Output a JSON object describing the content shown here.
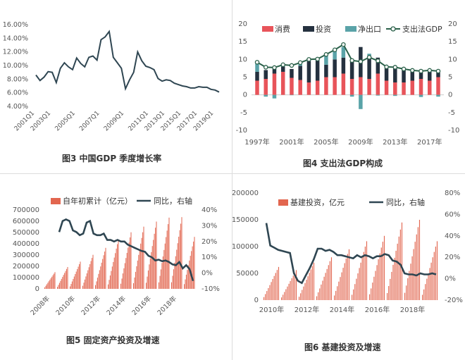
{
  "figures": {
    "fig3": "图3 中国GDP 季度增长率",
    "fig4": "图4 支出法GDP构成",
    "fig5": "图5 固定资产投资及增速",
    "fig6": "图6 基建投资及增速"
  },
  "colors": {
    "line": "#2f4652",
    "consumption": "#e8545a",
    "investment": "#25313f",
    "net_export": "#5aa3a8",
    "total": "#2a6049",
    "bars": "#e2664f",
    "axis_text": "#555555",
    "grid": "#e6e6e6"
  },
  "chart_data": [
    {
      "id": "gdp-quarterly",
      "type": "line",
      "ylim": [
        0.04,
        0.16
      ],
      "y_ticks": [
        "16.00%",
        "14.00%",
        "12.00%",
        "10.00%",
        "8.00%",
        "6.00%",
        "4.00%"
      ],
      "x_ticks": [
        "2001Q1",
        "2003Q1",
        "2005Q1",
        "2007Q1",
        "2009Q1",
        "2011Q1",
        "2013Q1",
        "2015Q1",
        "2017Q1",
        "2019Q1"
      ],
      "x": [
        "2001Q1",
        "2001Q3",
        "2002Q1",
        "2002Q3",
        "2003Q1",
        "2003Q2",
        "2003Q3",
        "2004Q1",
        "2004Q2",
        "2004Q3",
        "2005Q1",
        "2005Q2",
        "2005Q3",
        "2006Q1",
        "2006Q2",
        "2006Q3",
        "2007Q1",
        "2007Q2",
        "2007Q3",
        "2008Q1",
        "2008Q2",
        "2008Q3",
        "2009Q1",
        "2009Q2",
        "2009Q3",
        "2010Q1",
        "2010Q2",
        "2010Q3",
        "2011Q1",
        "2011Q3",
        "2012Q1",
        "2012Q3",
        "2013Q1",
        "2013Q3",
        "2014Q1",
        "2014Q3",
        "2015Q1",
        "2015Q3",
        "2016Q1",
        "2016Q3",
        "2017Q1",
        "2017Q3",
        "2018Q1",
        "2018Q3",
        "2019Q1",
        "2019Q3"
      ],
      "values": [
        0.086,
        0.078,
        0.083,
        0.091,
        0.09,
        0.075,
        0.096,
        0.104,
        0.098,
        0.094,
        0.111,
        0.103,
        0.098,
        0.112,
        0.114,
        0.108,
        0.138,
        0.142,
        0.15,
        0.112,
        0.104,
        0.096,
        0.066,
        0.079,
        0.09,
        0.12,
        0.107,
        0.099,
        0.097,
        0.094,
        0.081,
        0.077,
        0.079,
        0.078,
        0.074,
        0.072,
        0.07,
        0.069,
        0.067,
        0.067,
        0.069,
        0.068,
        0.068,
        0.065,
        0.064,
        0.061
      ]
    },
    {
      "id": "gdp-expenditure",
      "type": "bar",
      "ylim": [
        -10,
        20
      ],
      "y_ticks": [
        "20",
        "15",
        "10",
        "5",
        "0",
        "-5",
        "-10"
      ],
      "x_ticks": [
        "1997年",
        "2001年",
        "2005年",
        "2009年",
        "2013年",
        "2017年"
      ],
      "legend": [
        "消费",
        "投资",
        "净出口",
        "支出法GDP"
      ],
      "categories": [
        "1997",
        "1998",
        "1999",
        "2000",
        "2001",
        "2002",
        "2003",
        "2004",
        "2005",
        "2006",
        "2007",
        "2008",
        "2009",
        "2010",
        "2011",
        "2012",
        "2013",
        "2014",
        "2015",
        "2016",
        "2017",
        "2018"
      ],
      "series": [
        {
          "name": "消费",
          "values": [
            4.0,
            4.5,
            6.0,
            6.5,
            4.8,
            4.2,
            3.5,
            4.0,
            5.0,
            5.0,
            6.0,
            4.5,
            5.0,
            4.5,
            6.0,
            4.0,
            3.5,
            3.5,
            4.0,
            4.5,
            4.0,
            5.0
          ]
        },
        {
          "name": "投资",
          "values": [
            2.5,
            2.5,
            1.5,
            1.5,
            2.5,
            4.0,
            6.0,
            6.0,
            3.5,
            5.0,
            4.5,
            5.0,
            8.5,
            6.6,
            4.5,
            3.5,
            4.0,
            3.5,
            3.0,
            2.5,
            2.5,
            2.0
          ]
        },
        {
          "name": "净出口",
          "values": [
            2.5,
            -0.5,
            -1.0,
            0.3,
            -0.1,
            0.7,
            0.5,
            0.5,
            2.5,
            2.5,
            3.0,
            -0.5,
            -4.0,
            0.5,
            -0.2,
            0.3,
            -0.3,
            0.3,
            0.3,
            -0.6,
            0.5,
            -0.5
          ]
        },
        {
          "name": "支出法GDP",
          "values": [
            9.2,
            7.8,
            7.7,
            8.5,
            8.3,
            9.1,
            10.0,
            10.1,
            11.4,
            12.7,
            14.2,
            9.7,
            9.4,
            10.6,
            9.6,
            7.9,
            7.8,
            7.3,
            6.9,
            6.7,
            6.9,
            6.7
          ]
        }
      ]
    },
    {
      "id": "fixed-asset-investment",
      "type": "bar",
      "ylim": [
        0,
        700000
      ],
      "y2lim": [
        -0.1,
        0.4
      ],
      "y_ticks": [
        "700000",
        "600000",
        "500000",
        "400000",
        "300000",
        "200000",
        "100000",
        "0"
      ],
      "y2_ticks": [
        "40%",
        "30%",
        "20%",
        "10%",
        "0%",
        "-10%"
      ],
      "x_ticks": [
        "2008年",
        "2010年",
        "2012年",
        "2014年",
        "2016年",
        "2018年"
      ],
      "legend": [
        "自年初累计（亿元）",
        "同比，右轴"
      ],
      "bar_years": [
        "2008",
        "2009",
        "2010",
        "2011",
        "2012",
        "2013",
        "2014",
        "2015",
        "2016",
        "2017",
        "2018",
        "2019"
      ],
      "bar_year_totals": [
        148000,
        194000,
        241000,
        302000,
        364000,
        436000,
        502000,
        552000,
        597000,
        632000,
        636000,
        461000
      ],
      "months_shown": 11,
      "line_values": [
        0.26,
        0.33,
        0.34,
        0.33,
        0.27,
        0.26,
        0.24,
        0.25,
        0.32,
        0.33,
        0.25,
        0.24,
        0.24,
        0.25,
        0.21,
        0.21,
        0.2,
        0.21,
        0.2,
        0.2,
        0.18,
        0.17,
        0.16,
        0.15,
        0.14,
        0.135,
        0.11,
        0.1,
        0.08,
        0.085,
        0.075,
        0.08,
        0.07,
        0.055,
        0.05,
        0.07,
        0.03,
        0.05,
        0.025,
        -0.05
      ]
    },
    {
      "id": "infrastructure-investment",
      "type": "bar",
      "ylim": [
        0,
        200000
      ],
      "y2lim": [
        -0.2,
        0.8
      ],
      "y_ticks": [
        "200000",
        "150000",
        "100000",
        "50000",
        "0"
      ],
      "y2_ticks": [
        "80%",
        "60%",
        "40%",
        "20%",
        "0%",
        "-20%"
      ],
      "x_ticks": [
        "2010年",
        "2012年",
        "2014年",
        "2016年",
        "2018年"
      ],
      "legend": [
        "基建投资，亿元",
        "同比，右轴"
      ],
      "bar_years": [
        "2010",
        "2011",
        "2012",
        "2013",
        "2014",
        "2015",
        "2016",
        "2017",
        "2018",
        "2019"
      ],
      "bar_year_totals": [
        62000,
        56000,
        70000,
        80000,
        95000,
        110000,
        120000,
        145000,
        150000,
        110000
      ],
      "months_shown": 11,
      "line_values": [
        0.52,
        0.31,
        0.29,
        0.27,
        0.26,
        0.25,
        0.24,
        0.05,
        -0.02,
        -0.04,
        0.03,
        0.1,
        0.18,
        0.28,
        0.28,
        0.26,
        0.27,
        0.25,
        0.22,
        0.22,
        0.21,
        0.2,
        0.19,
        0.22,
        0.2,
        0.22,
        0.21,
        0.19,
        0.21,
        0.21,
        0.23,
        0.22,
        0.17,
        0.16,
        0.13,
        0.05,
        0.04,
        0.04,
        0.03,
        0.05,
        0.04,
        0.04,
        0.05,
        0.04
      ]
    }
  ]
}
